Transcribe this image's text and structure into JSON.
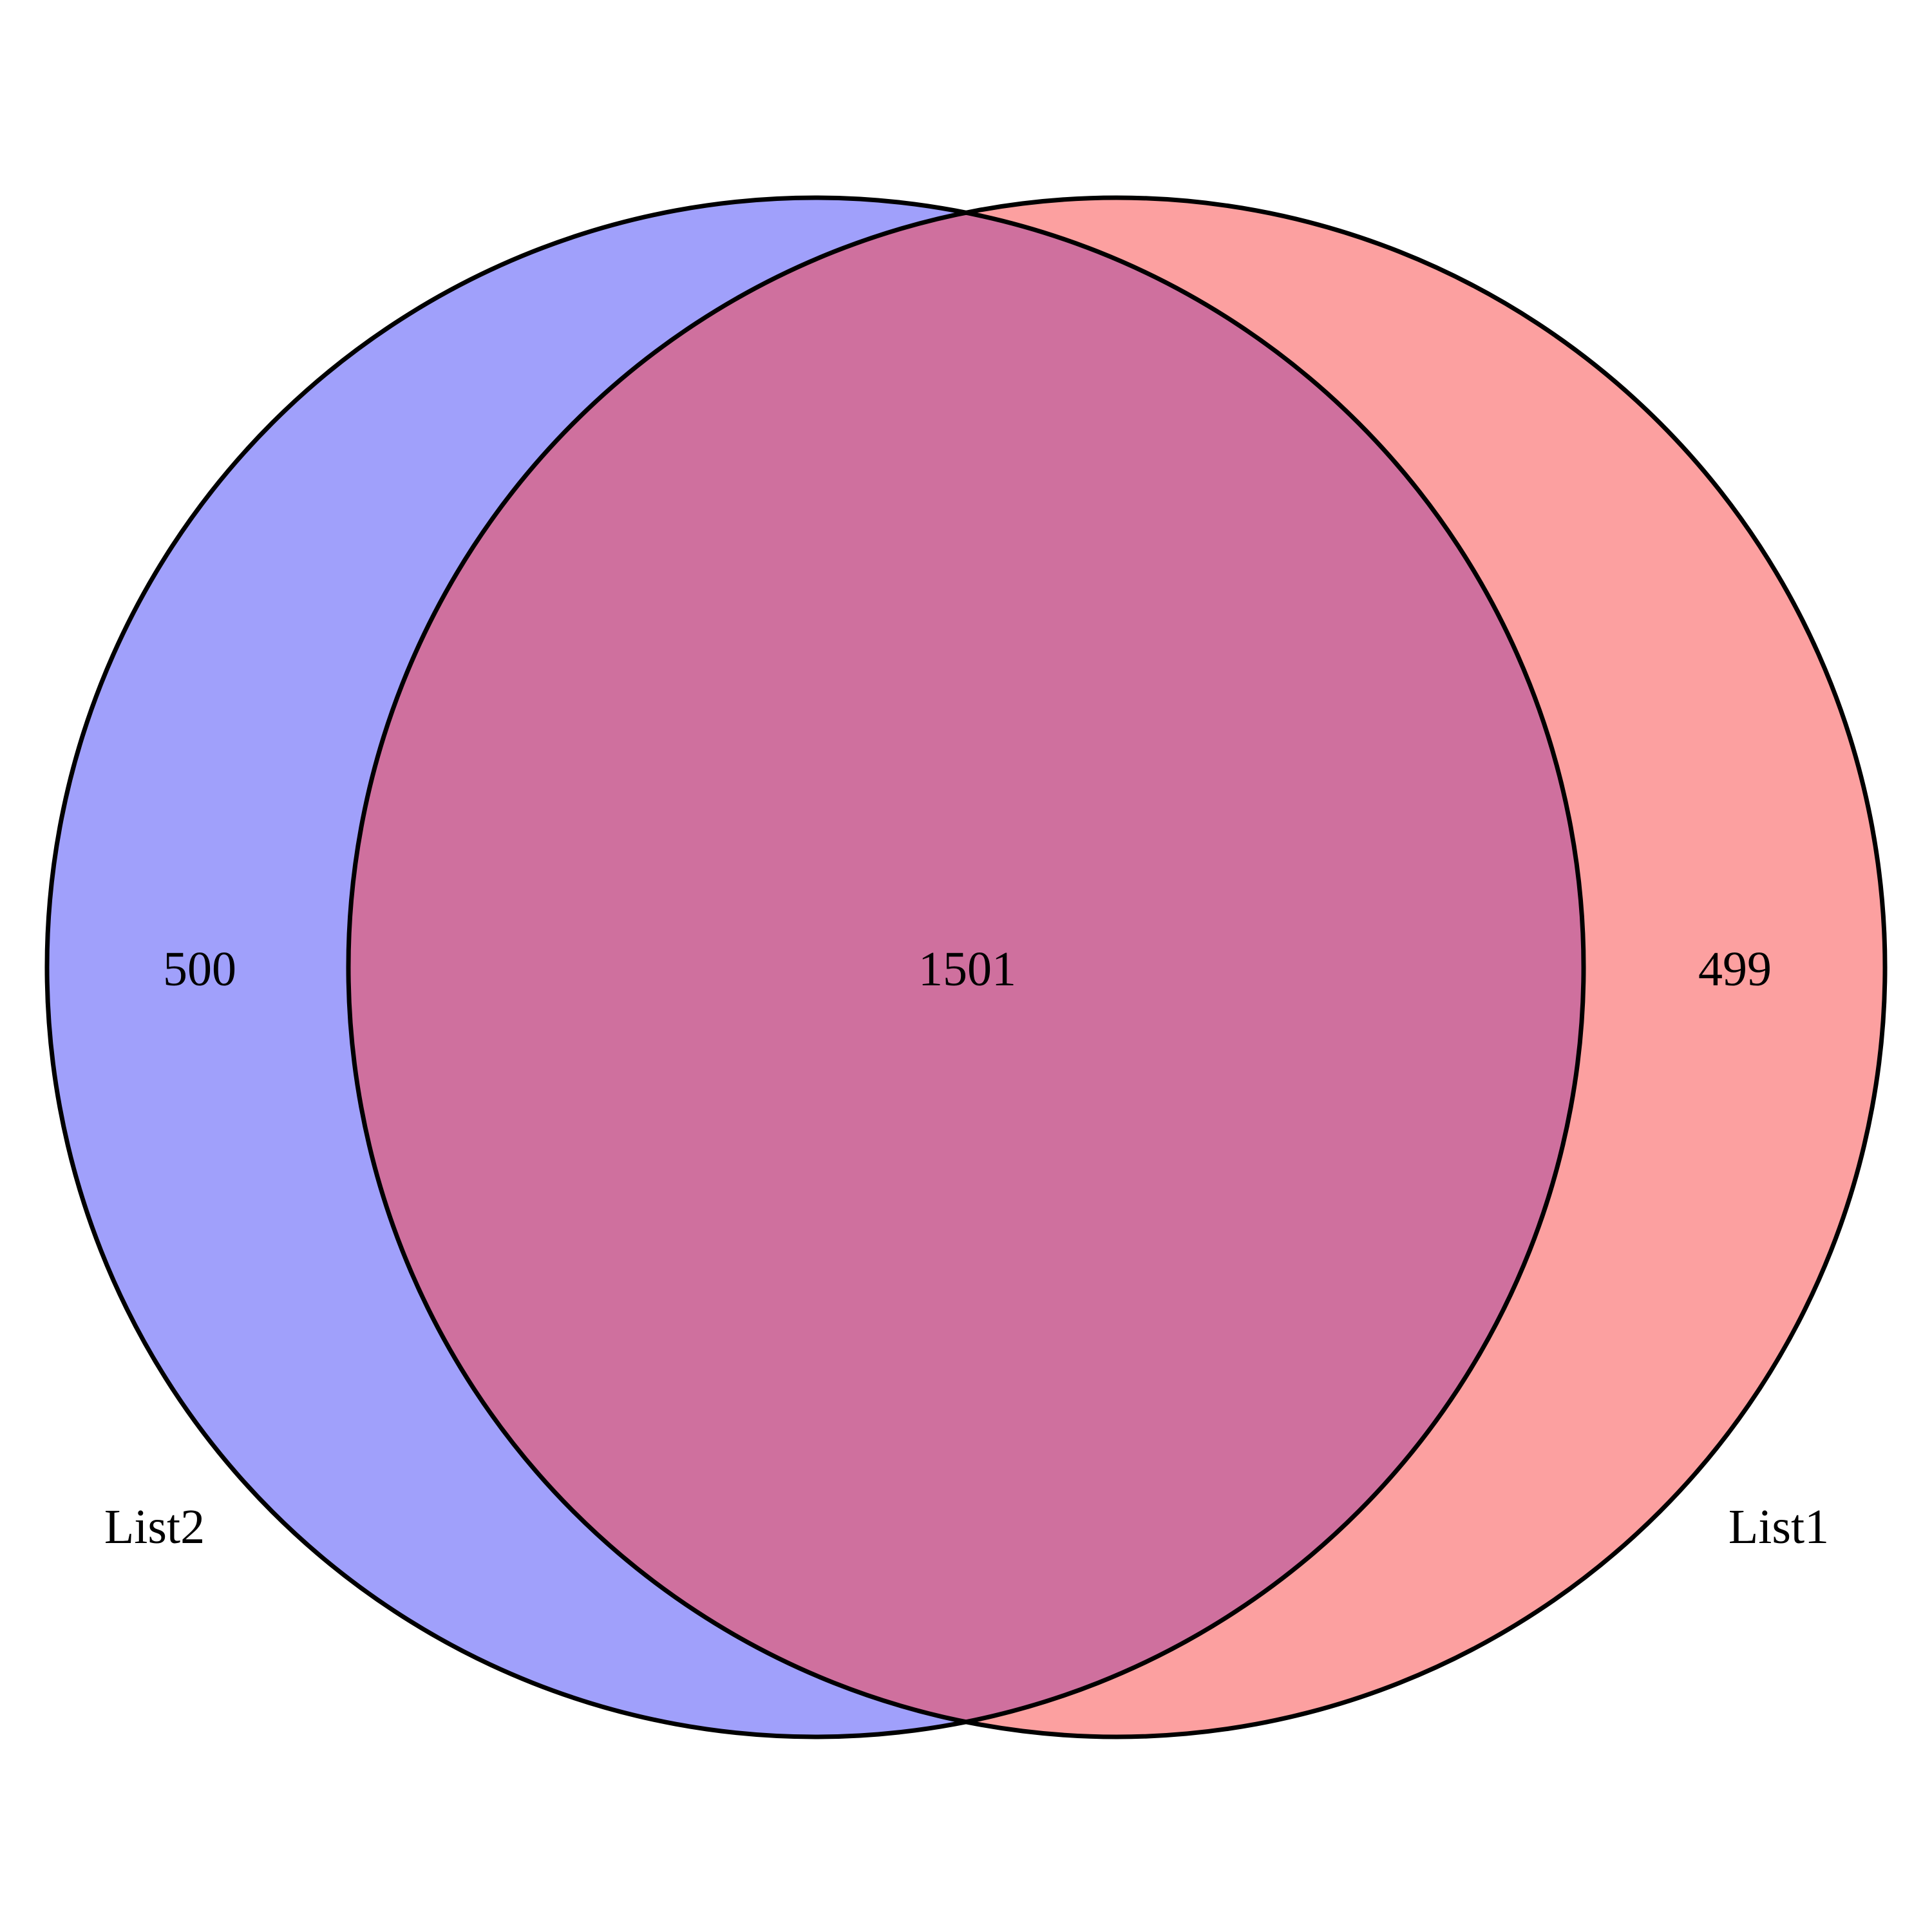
{
  "diagram": {
    "type": "venn",
    "sets": [
      {
        "key": "list2",
        "name": "List2",
        "fill": "#a0a0fb"
      },
      {
        "key": "list1",
        "name": "List1",
        "fill": "#fca0a0"
      }
    ],
    "overlap_fill": "#cf709e",
    "outline_color": "#000000",
    "counts": {
      "list2_only": "500",
      "both": "1501",
      "list1_only": "499"
    }
  }
}
